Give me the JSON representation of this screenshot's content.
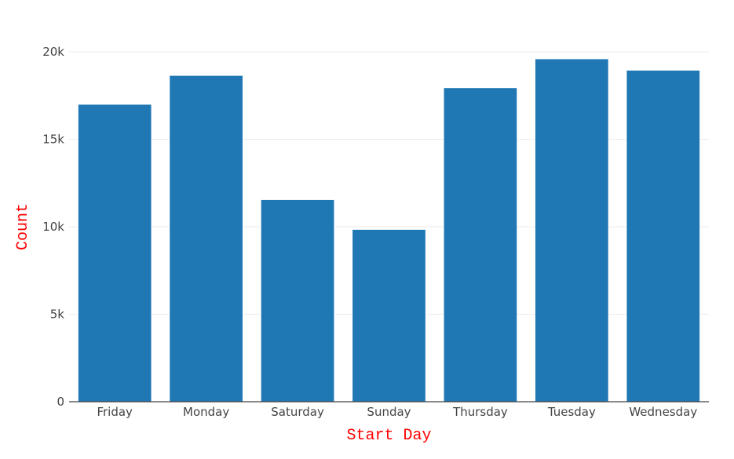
{
  "chart_data": {
    "type": "bar",
    "categories": [
      "Friday",
      "Monday",
      "Saturday",
      "Sunday",
      "Thursday",
      "Tuesday",
      "Wednesday"
    ],
    "values": [
      17000,
      18650,
      11550,
      9850,
      17950,
      19600,
      18950
    ],
    "xlabel": "Start Day",
    "ylabel": "Count",
    "ylim": [
      0,
      20000
    ],
    "yticks": [
      0,
      5000,
      10000,
      15000,
      20000
    ],
    "ytick_labels": [
      "0",
      "5k",
      "10k",
      "15k",
      "20k"
    ],
    "grid": true,
    "colors": {
      "bar": "#1f77b4",
      "axis_title": "#ff0000",
      "tick_text": "#444444"
    }
  }
}
